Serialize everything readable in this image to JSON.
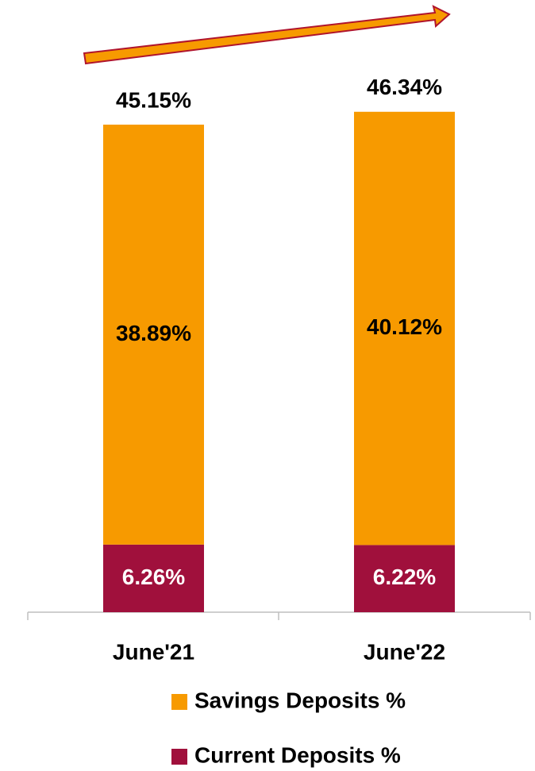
{
  "chart_data": {
    "type": "bar",
    "stacked": true,
    "categories": [
      "June'21",
      "June'22"
    ],
    "series": [
      {
        "name": "Current Deposits %",
        "color": "#a0103c",
        "values": [
          6.26,
          6.22
        ],
        "value_labels": [
          "6.26%",
          "6.22%"
        ]
      },
      {
        "name": "Savings Deposits %",
        "color": "#f79a00",
        "values": [
          38.89,
          40.12
        ],
        "value_labels": [
          "38.89%",
          "40.12%"
        ]
      }
    ],
    "totals": [
      45.15,
      46.34
    ],
    "total_labels": [
      "45.15%",
      "46.34%"
    ]
  }
}
